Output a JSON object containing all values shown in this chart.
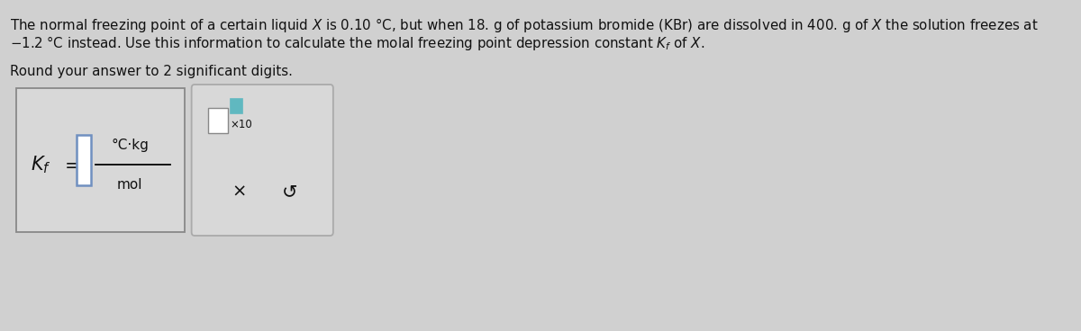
{
  "background_color": "#d0d0d0",
  "text_color": "#111111",
  "title_line1": "The normal freezing point of a certain liquid $\\mathit{X}$ is 0.10 °C, but when 18. g of potassium bromide (KBr) are dissolved in 400. g of $\\mathit{X}$ the solution freezes at",
  "title_line2": "$-$1.2 °C instead. Use this information to calculate the molal freezing point depression constant $K_f$ of $\\mathit{X}$.",
  "subtitle": "Round your answer to 2 significant digits.",
  "box_bg": "#d8d8d8",
  "box_edge": "#aaaaaa",
  "box1_edge": "#888888",
  "input_fill": "#ffffff",
  "input_edge_blue": "#7090c0",
  "teal_box": "#60b8c0",
  "x_symbol": "×",
  "undo_symbol": "↺"
}
